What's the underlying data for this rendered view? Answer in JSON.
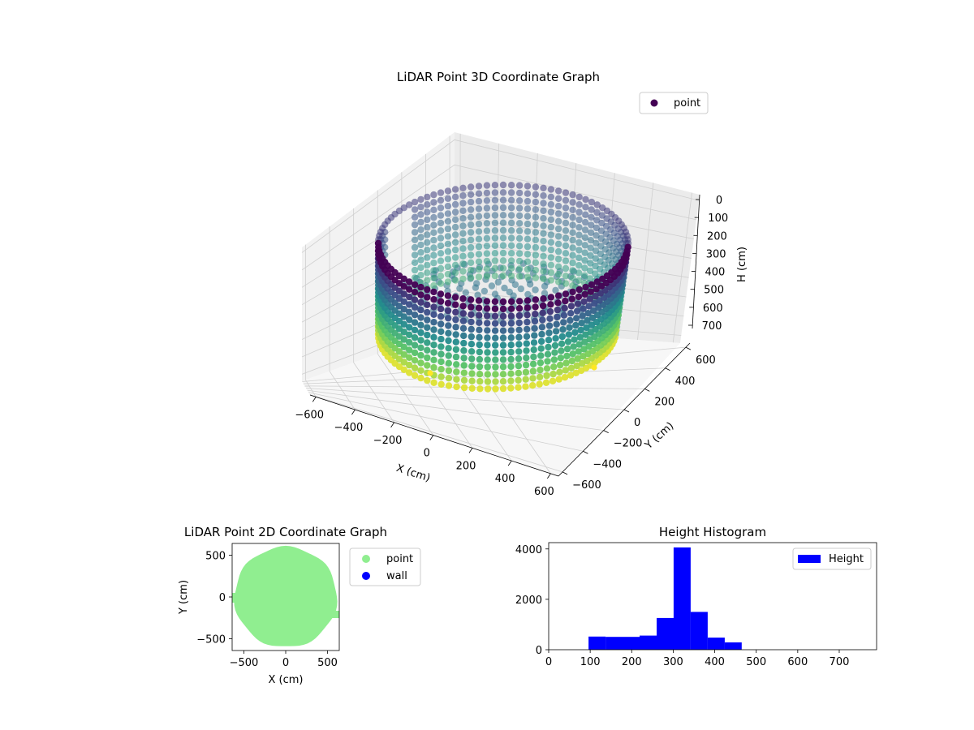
{
  "chart_data": [
    {
      "type": "scatter",
      "projection": "3d",
      "title": "LiDAR Point 3D Coordinate Graph",
      "xlabel": "X (cm)",
      "ylabel": "Y (cm)",
      "zlabel": "H (cm)",
      "xticks": [
        "−600",
        "−400",
        "−200",
        "0",
        "200",
        "400",
        "600"
      ],
      "yticks": [
        "−600",
        "−400",
        "−200",
        "0",
        "200",
        "400",
        "600"
      ],
      "zticks": [
        "0",
        "100",
        "200",
        "300",
        "400",
        "500",
        "600",
        "700"
      ],
      "zaxis_inverted": true,
      "colormap": "viridis",
      "colormap_stops": [
        "#440154",
        "#3b528b",
        "#21918c",
        "#5ec962",
        "#fde725"
      ],
      "legend": [
        {
          "label": "point",
          "color": "#440154"
        }
      ],
      "legend_position": "top-right",
      "grid": true,
      "series": [
        {
          "name": "point",
          "shape": "cylindrical wall of points, radius about 600 cm, heights about 100 to 470 cm, with a gap in the back-left wall",
          "radius_cm": 600,
          "height_range_cm": [
            100,
            470
          ],
          "stray_points": [
            {
              "x": -430,
              "y": 130,
              "h": 770
            },
            {
              "x": 460,
              "y": 430,
              "h": 770
            }
          ]
        }
      ]
    },
    {
      "type": "scatter",
      "title": "LiDAR Point 2D Coordinate Graph",
      "xlabel": "X (cm)",
      "ylabel": "Y (cm)",
      "xticks": [
        "−500",
        "0",
        "500"
      ],
      "yticks": [
        "−500",
        "0",
        "500"
      ],
      "xlim": [
        -640,
        640
      ],
      "ylim": [
        -640,
        640
      ],
      "legend": [
        {
          "label": "point",
          "color": "#90ee90"
        },
        {
          "label": "wall",
          "color": "#0000ff"
        }
      ],
      "legend_position": "outside-right",
      "series": [
        {
          "name": "point",
          "shape": "filled disc",
          "center": [
            0,
            0
          ],
          "radius_cm": 600,
          "color": "#90ee90"
        },
        {
          "name": "wall",
          "values": [],
          "color": "#0000ff"
        }
      ]
    },
    {
      "type": "bar",
      "subtype": "histogram",
      "title": "Height Histogram",
      "xticks": [
        "0",
        "100",
        "200",
        "300",
        "400",
        "500",
        "600",
        "700"
      ],
      "yticks": [
        "0",
        "2000",
        "4000"
      ],
      "xlim": [
        0,
        790
      ],
      "ylim": [
        0,
        4250
      ],
      "color": "#0000ff",
      "legend": [
        {
          "label": "Height",
          "color": "#0000ff"
        }
      ],
      "legend_position": "top-right",
      "series": [
        {
          "name": "Height",
          "bins": [
            {
              "x0": 96,
              "x1": 137,
              "count": 520
            },
            {
              "x0": 137,
              "x1": 178,
              "count": 510
            },
            {
              "x0": 178,
              "x1": 219,
              "count": 510
            },
            {
              "x0": 219,
              "x1": 260,
              "count": 560
            },
            {
              "x0": 260,
              "x1": 301,
              "count": 1260
            },
            {
              "x0": 301,
              "x1": 342,
              "count": 4060
            },
            {
              "x0": 342,
              "x1": 383,
              "count": 1500
            },
            {
              "x0": 383,
              "x1": 424,
              "count": 480
            },
            {
              "x0": 424,
              "x1": 465,
              "count": 290
            }
          ]
        }
      ]
    }
  ]
}
